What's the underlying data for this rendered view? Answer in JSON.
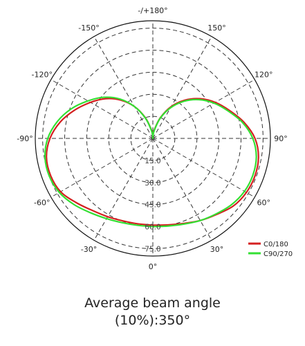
{
  "chart_data": {
    "type": "line",
    "subtype": "polar",
    "title": "",
    "angle_tick_labels": [
      {
        "angle": 180,
        "text": "-/+180°"
      },
      {
        "angle": 150,
        "text": "150°"
      },
      {
        "angle": 120,
        "text": "120°"
      },
      {
        "angle": 90,
        "text": "90°"
      },
      {
        "angle": 60,
        "text": "60°"
      },
      {
        "angle": 30,
        "text": "30°"
      },
      {
        "angle": 0,
        "text": "0°"
      },
      {
        "angle": -30,
        "text": "-30°"
      },
      {
        "angle": -60,
        "text": "-60°"
      },
      {
        "angle": -90,
        "text": "-90°"
      },
      {
        "angle": -120,
        "text": "-120°"
      },
      {
        "angle": -150,
        "text": "-150°"
      }
    ],
    "radial_ticks": [
      {
        "value": 15,
        "text": "15.0"
      },
      {
        "value": 30,
        "text": "30.0"
      },
      {
        "value": 45,
        "text": "45.0"
      },
      {
        "value": 60,
        "text": "60.0"
      },
      {
        "value": 75,
        "text": "75.0"
      }
    ],
    "radial_range": [
      0,
      80
    ],
    "zero_direction": "bottom",
    "grid": true,
    "legend_position": "bottom-right",
    "series": [
      {
        "name": "C0/180",
        "color": "#d42020",
        "angles": [
          0,
          10,
          20,
          30,
          40,
          50,
          60,
          70,
          80,
          90,
          100,
          110,
          120,
          130,
          140,
          150,
          160,
          170,
          178,
          180,
          182,
          190,
          200,
          210,
          220,
          230,
          240,
          250,
          260,
          270,
          280,
          290,
          300,
          310,
          320,
          330,
          340,
          350,
          360
        ],
        "values": [
          59,
          59.7,
          61.5,
          64.5,
          67.5,
          71.5,
          73.5,
          74,
          73,
          69.5,
          63,
          55.5,
          49,
          42,
          34,
          25,
          15,
          6,
          2,
          0,
          2,
          6,
          15,
          25,
          34,
          42,
          49,
          56.5,
          64,
          70,
          73.5,
          74,
          72.5,
          68,
          64,
          61.5,
          59.7,
          59,
          59
        ]
      },
      {
        "name": "C90/270",
        "color": "#33e033",
        "angles": [
          0,
          10,
          20,
          30,
          40,
          50,
          60,
          70,
          80,
          90,
          100,
          110,
          120,
          130,
          140,
          150,
          160,
          170,
          178,
          180,
          182,
          190,
          200,
          210,
          220,
          230,
          240,
          250,
          260,
          270,
          280,
          290,
          300,
          310,
          320,
          330,
          340,
          350,
          360
        ],
        "values": [
          60,
          60.5,
          62,
          64.5,
          67,
          70,
          72,
          72.5,
          71.5,
          68,
          62,
          54.5,
          48,
          41,
          33,
          24,
          14.5,
          5.5,
          1.5,
          0,
          1.5,
          5.5,
          14.5,
          25,
          35,
          43.5,
          51,
          59,
          66,
          71.5,
          74.5,
          75,
          73.5,
          70,
          66,
          63,
          61,
          60,
          60
        ]
      }
    ]
  },
  "caption": {
    "line1": "Average beam angle",
    "line2": "(10%):350°"
  }
}
